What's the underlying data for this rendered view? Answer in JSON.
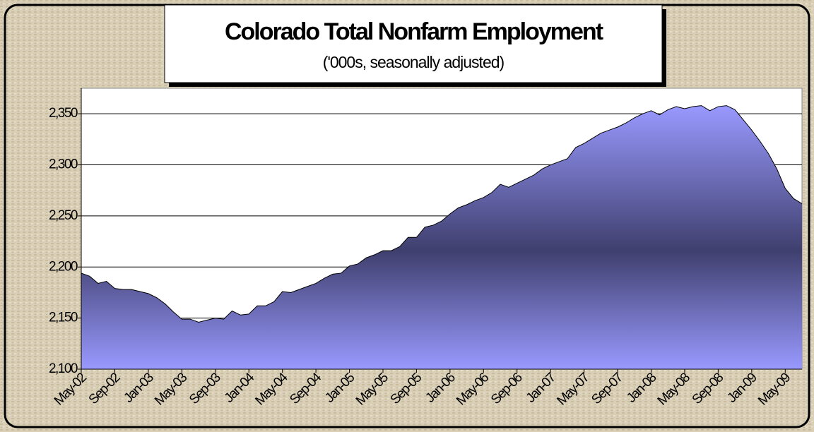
{
  "chart_data": {
    "type": "area",
    "title": "Colorado Total Nonfarm Employment",
    "subtitle": "('000s,  seasonally adjusted)",
    "categories": [
      "May-02",
      null,
      null,
      null,
      "Sep-02",
      null,
      null,
      null,
      "Jan-03",
      null,
      null,
      null,
      "May-03",
      null,
      null,
      null,
      "Sep-03",
      null,
      null,
      null,
      "Jan-04",
      null,
      null,
      null,
      "May-04",
      null,
      null,
      null,
      "Sep-04",
      null,
      null,
      null,
      "Jan-05",
      null,
      null,
      null,
      "May-05",
      null,
      null,
      null,
      "Sep-05",
      null,
      null,
      null,
      "Jan-06",
      null,
      null,
      null,
      "May-06",
      null,
      null,
      null,
      "Sep-06",
      null,
      null,
      null,
      "Jan-07",
      null,
      null,
      null,
      "May-07",
      null,
      null,
      null,
      "Sep-07",
      null,
      null,
      null,
      "Jan-08",
      null,
      null,
      null,
      "May-08",
      null,
      null,
      null,
      "Sep-08",
      null,
      null,
      null,
      "Jan-09",
      null,
      null,
      null,
      "May-09",
      null,
      null
    ],
    "values": [
      2194,
      2191,
      2184,
      2186,
      2179,
      2178,
      2178,
      2176,
      2174,
      2170,
      2164,
      2156,
      2149,
      2149,
      2146,
      2148,
      2150,
      2149,
      2157,
      2153,
      2154,
      2162,
      2162,
      2166,
      2176,
      2175,
      2178,
      2181,
      2184,
      2189,
      2193,
      2194,
      2201,
      2203,
      2209,
      2212,
      2216,
      2216,
      2220,
      2229,
      2229,
      2239,
      2241,
      2245,
      2252,
      2258,
      2261,
      2265,
      2268,
      2273,
      2281,
      2278,
      2282,
      2286,
      2290,
      2296,
      2300,
      2303,
      2306,
      2317,
      2321,
      2326,
      2331,
      2334,
      2337,
      2341,
      2346,
      2350,
      2353,
      2349,
      2354,
      2357,
      2355,
      2357,
      2358,
      2353,
      2357,
      2358,
      2354,
      2344,
      2334,
      2323,
      2311,
      2296,
      2277,
      2267,
      2262
    ],
    "color": "#9999ff",
    "ylim": [
      2100,
      2375
    ],
    "yticks": [
      {
        "value": 2100,
        "label": "2,100"
      },
      {
        "value": 2150,
        "label": "2,150"
      },
      {
        "value": 2200,
        "label": "2,200"
      },
      {
        "value": 2250,
        "label": "2,250"
      },
      {
        "value": 2300,
        "label": "2,300"
      },
      {
        "value": 2350,
        "label": "2,350"
      }
    ],
    "grid": true
  }
}
